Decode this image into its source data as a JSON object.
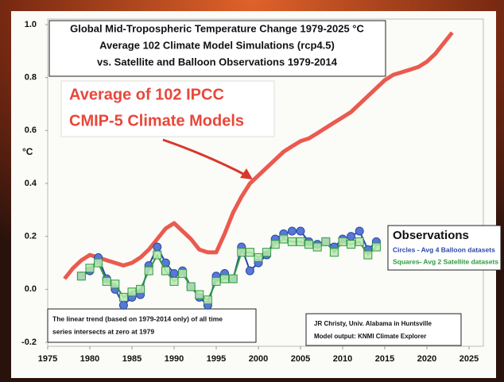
{
  "chart_data": {
    "type": "line",
    "title_lines": [
      "Global Mid-Tropospheric Temperature Change 1979-2025 °C",
      "Average 102 Climate Model Simulations (rcp4.5)",
      "vs. Satellite and Balloon Observations 1979-2014"
    ],
    "y_label": "°C",
    "model_label": [
      "Average of 102 IPCC",
      "CMIP-5 Climate Models"
    ],
    "legend_title": "Observations",
    "note": [
      "The linear trend (based on 1979-2014 only) of all time",
      "series intersects at zero at 1979"
    ],
    "credit": [
      "JR Christy, Univ. Alabama in Huntsville",
      "Model output: KNMI Climate Explorer"
    ],
    "xlim": [
      1975,
      2025
    ],
    "xticks": [
      1975,
      1980,
      1985,
      1990,
      1995,
      2000,
      2005,
      2010,
      2015,
      2020,
      2025
    ],
    "ylim": [
      -0.2,
      1.0
    ],
    "yticks": [
      -0.2,
      {
        "value": 0,
        "label": "0.0"
      },
      0.2,
      0.4,
      0.6,
      0.8,
      {
        "value": 1,
        "label": "1.0"
      }
    ],
    "grid": false,
    "series": [
      {
        "color": "#ea5a4e",
        "marker": "none",
        "x": [
          1977,
          1978,
          1979,
          1980,
          1981,
          1982,
          1983,
          1984,
          1985,
          1986,
          1987,
          1988,
          1989,
          1990,
          1991,
          1992,
          1993,
          1994,
          1995,
          1996,
          1997,
          1998,
          1999,
          2000,
          2001,
          2002,
          2003,
          2004,
          2005,
          2006,
          2007,
          2008,
          2009,
          2010,
          2011,
          2012,
          2013,
          2014,
          2015,
          2016,
          2017,
          2018,
          2019,
          2020,
          2021,
          2022,
          2023
        ],
        "values": [
          0.04,
          0.08,
          0.11,
          0.13,
          0.12,
          0.11,
          0.1,
          0.09,
          0.1,
          0.12,
          0.15,
          0.19,
          0.23,
          0.25,
          0.22,
          0.19,
          0.15,
          0.14,
          0.14,
          0.21,
          0.29,
          0.35,
          0.4,
          0.43,
          0.46,
          0.49,
          0.52,
          0.54,
          0.56,
          0.57,
          0.59,
          0.61,
          0.63,
          0.65,
          0.67,
          0.7,
          0.73,
          0.76,
          0.79,
          0.81,
          0.82,
          0.83,
          0.84,
          0.86,
          0.89,
          0.93,
          0.97
        ]
      },
      {
        "name": "Circles - Avg 4 Balloon datasets",
        "color": "#2a4aa6",
        "marker": "circle",
        "x": [
          1979,
          1980,
          1981,
          1982,
          1983,
          1984,
          1985,
          1986,
          1987,
          1988,
          1989,
          1990,
          1991,
          1992,
          1993,
          1994,
          1995,
          1996,
          1997,
          1998,
          1999,
          2000,
          2001,
          2002,
          2003,
          2004,
          2005,
          2006,
          2007,
          2008,
          2009,
          2010,
          2011,
          2012,
          2013,
          2014
        ],
        "values": [
          0.05,
          0.07,
          0.12,
          0.04,
          0.0,
          -0.06,
          -0.03,
          -0.02,
          0.09,
          0.16,
          0.1,
          0.06,
          0.07,
          0.01,
          -0.03,
          -0.06,
          0.05,
          0.06,
          0.04,
          0.16,
          0.07,
          0.1,
          0.13,
          0.19,
          0.21,
          0.22,
          0.22,
          0.18,
          0.17,
          0.18,
          0.16,
          0.19,
          0.2,
          0.22,
          0.15,
          0.18
        ]
      },
      {
        "name": "Squares- Avg 2 Satellite datasets",
        "color": "#2f9a3e",
        "marker": "square",
        "x": [
          1979,
          1980,
          1981,
          1982,
          1983,
          1984,
          1985,
          1986,
          1987,
          1988,
          1989,
          1990,
          1991,
          1992,
          1993,
          1994,
          1995,
          1996,
          1997,
          1998,
          1999,
          2000,
          2001,
          2002,
          2003,
          2004,
          2005,
          2006,
          2007,
          2008,
          2009,
          2010,
          2011,
          2012,
          2013,
          2014
        ],
        "values": [
          0.05,
          0.08,
          0.1,
          0.03,
          0.02,
          -0.03,
          -0.01,
          0.0,
          0.07,
          0.13,
          0.07,
          0.03,
          0.06,
          0.01,
          -0.02,
          -0.04,
          0.03,
          0.04,
          0.04,
          0.14,
          0.14,
          0.12,
          0.14,
          0.17,
          0.19,
          0.18,
          0.18,
          0.17,
          0.16,
          0.18,
          0.14,
          0.18,
          0.17,
          0.18,
          0.13,
          0.16
        ]
      }
    ]
  }
}
